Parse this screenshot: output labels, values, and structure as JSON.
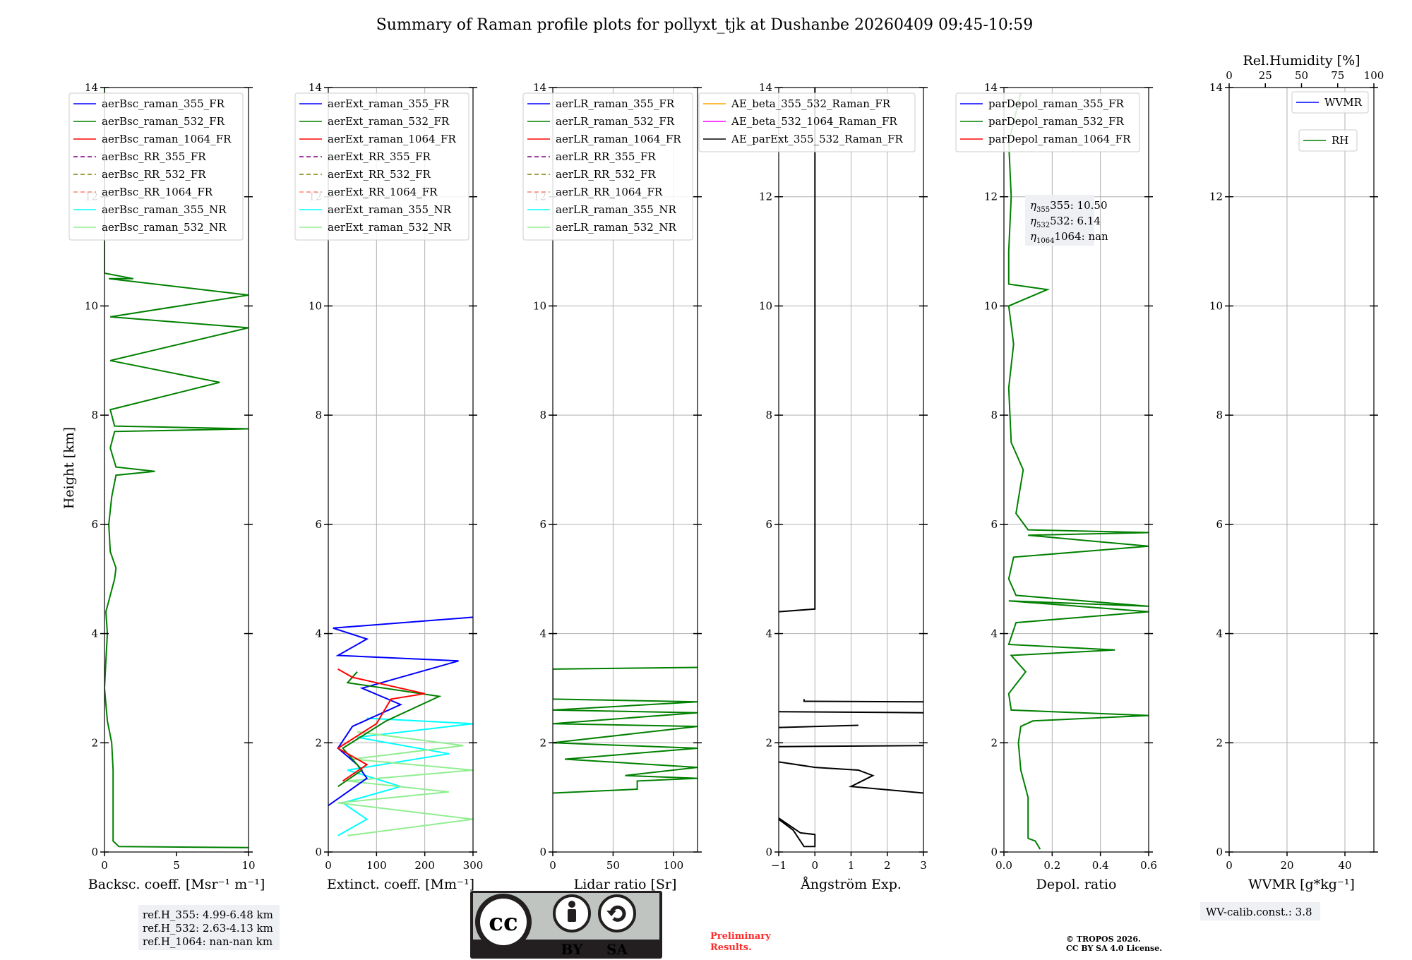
{
  "title": "Summary of Raman profile plots for pollyxt_tjk at Dushanbe 20260409 09:45-10:59",
  "shared_ylabel": "Height [km]",
  "chart_data": [
    {
      "type": "line",
      "id": "backscatter",
      "xlabel": "Backsc. coeff. [Msr⁻¹ m⁻¹]",
      "xlim": [
        0,
        10
      ],
      "ylim": [
        0,
        14
      ],
      "xticks": [
        "0",
        "5",
        "10"
      ],
      "yticks": [
        "0",
        "2",
        "4",
        "6",
        "8",
        "10",
        "12",
        "14"
      ],
      "grid": false,
      "legend": [
        "aerBsc_raman_355_FR",
        "aerBsc_raman_532_FR",
        "aerBsc_raman_1064_FR",
        "aerBsc_RR_355_FR",
        "aerBsc_RR_532_FR",
        "aerBsc_RR_1064_FR",
        "aerBsc_raman_355_NR",
        "aerBsc_raman_532_NR"
      ],
      "series": [
        {
          "name": "aerBsc_raman_532_FR",
          "color": "#008000",
          "points": [
            [
              10,
              0.08
            ],
            [
              1,
              0.1
            ],
            [
              0.6,
              0.2
            ],
            [
              0.6,
              1
            ],
            [
              0.6,
              1.5
            ],
            [
              0.5,
              2
            ],
            [
              0.2,
              2.4
            ],
            [
              0,
              3
            ],
            [
              0.1,
              3.5
            ],
            [
              0.2,
              4
            ],
            [
              0.1,
              4.4
            ],
            [
              0.4,
              4.7
            ],
            [
              0.7,
              5
            ],
            [
              0.8,
              5.2
            ],
            [
              0.4,
              5.5
            ],
            [
              0.3,
              6
            ],
            [
              0.5,
              6.5
            ],
            [
              0.8,
              6.9
            ],
            [
              3.5,
              6.97
            ],
            [
              0.8,
              7.05
            ],
            [
              0.4,
              7.4
            ],
            [
              0.7,
              7.7
            ],
            [
              10,
              7.75
            ],
            [
              0.7,
              7.8
            ],
            [
              0.4,
              8.1
            ],
            [
              8,
              8.6
            ],
            [
              0.4,
              9
            ],
            [
              10,
              9.6
            ],
            [
              0.4,
              9.8
            ],
            [
              10,
              10.2
            ],
            [
              0.3,
              10.5
            ],
            [
              2,
              10.5
            ],
            [
              0,
              10.6
            ],
            [
              0,
              14
            ]
          ]
        }
      ],
      "info": [
        "ref.H_355: 4.99-6.48 km",
        "ref.H_532: 2.63-4.13 km",
        "ref.H_1064: nan-nan km"
      ]
    },
    {
      "type": "line",
      "id": "extinction",
      "xlabel": "Extinct. coeff. [Mm⁻¹]",
      "xlim": [
        0,
        300
      ],
      "ylim": [
        0,
        14
      ],
      "xticks": [
        "0",
        "100",
        "200",
        "300"
      ],
      "yticks": [
        "0",
        "2",
        "4",
        "6",
        "8",
        "10",
        "12",
        "14"
      ],
      "grid": true,
      "legend": [
        "aerExt_raman_355_FR",
        "aerExt_raman_532_FR",
        "aerExt_raman_1064_FR",
        "aerExt_RR_355_FR",
        "aerExt_RR_532_FR",
        "aerExt_RR_1064_FR",
        "aerExt_raman_355_NR",
        "aerExt_raman_532_NR"
      ],
      "series": [
        {
          "name": "aerExt_raman_355_NR",
          "color": "#00ffff",
          "points": [
            [
              20,
              0.3
            ],
            [
              80,
              0.6
            ],
            [
              30,
              0.9
            ],
            [
              150,
              1.2
            ],
            [
              40,
              1.5
            ],
            [
              250,
              1.8
            ],
            [
              60,
              2.1
            ],
            [
              300,
              2.35
            ],
            [
              80,
              2.45
            ]
          ]
        },
        {
          "name": "aerExt_raman_532_NR",
          "color": "#90ee90",
          "points": [
            [
              40,
              0.3
            ],
            [
              300,
              0.6
            ],
            [
              20,
              0.9
            ],
            [
              250,
              1.1
            ],
            [
              40,
              1.3
            ],
            [
              300,
              1.5
            ],
            [
              50,
              1.7
            ],
            [
              280,
              1.95
            ],
            [
              60,
              2.2
            ]
          ]
        },
        {
          "name": "aerExt_raman_355_FR",
          "color": "#0000ff",
          "points": [
            [
              0,
              0.85
            ],
            [
              40,
              1.1
            ],
            [
              80,
              1.35
            ],
            [
              60,
              1.6
            ],
            [
              20,
              1.9
            ],
            [
              50,
              2.3
            ],
            [
              150,
              2.7
            ],
            [
              70,
              3
            ],
            [
              270,
              3.5
            ],
            [
              20,
              3.6
            ],
            [
              80,
              3.9
            ],
            [
              10,
              4.1
            ],
            [
              300,
              4.3
            ]
          ]
        },
        {
          "name": "aerExt_raman_532_FR",
          "color": "#008000",
          "points": [
            [
              20,
              1.2
            ],
            [
              70,
              1.5
            ],
            [
              30,
              1.9
            ],
            [
              120,
              2.4
            ],
            [
              230,
              2.85
            ],
            [
              40,
              3.1
            ],
            [
              60,
              3.3
            ]
          ]
        },
        {
          "name": "aerExt_raman_1064_FR",
          "color": "#ff0000",
          "points": [
            [
              30,
              1.3
            ],
            [
              80,
              1.6
            ],
            [
              20,
              1.9
            ],
            [
              100,
              2.35
            ],
            [
              130,
              2.8
            ],
            [
              200,
              2.9
            ],
            [
              50,
              3.2
            ],
            [
              20,
              3.35
            ]
          ]
        }
      ]
    },
    {
      "type": "line",
      "id": "lidar-ratio",
      "xlabel": "Lidar ratio [Sr]",
      "xlim": [
        0,
        120
      ],
      "ylim": [
        0,
        14
      ],
      "xticks": [
        "0",
        "50",
        "100"
      ],
      "yticks": [
        "0",
        "2",
        "4",
        "6",
        "8",
        "10",
        "12",
        "14"
      ],
      "grid": true,
      "legend": [
        "aerLR_raman_355_FR",
        "aerLR_raman_532_FR",
        "aerLR_raman_1064_FR",
        "aerLR_RR_355_FR",
        "aerLR_RR_532_FR",
        "aerLR_RR_1064_FR",
        "aerLR_raman_355_NR",
        "aerLR_raman_532_NR"
      ],
      "series": [
        {
          "name": "aerLR_raman_532_FR",
          "color": "#008000",
          "points": [
            [
              0,
              1.08
            ],
            [
              70,
              1.15
            ],
            [
              70,
              1.3
            ],
            [
              120,
              1.35
            ],
            [
              60,
              1.4
            ],
            [
              120,
              1.55
            ],
            [
              10,
              1.7
            ],
            [
              120,
              1.9
            ],
            [
              0,
              2
            ],
            [
              120,
              2.3
            ],
            [
              0,
              2.35
            ],
            [
              120,
              2.55
            ],
            [
              0,
              2.6
            ],
            [
              120,
              2.75
            ],
            [
              0,
              2.8
            ],
            [
              0,
              3.35
            ],
            [
              120,
              3.38
            ]
          ]
        }
      ]
    },
    {
      "type": "line",
      "id": "angstrom",
      "xlabel": "Ångström Exp.",
      "xlim": [
        -1,
        3
      ],
      "ylim": [
        0,
        14
      ],
      "xticks": [
        "−1",
        "0",
        "1",
        "2",
        "3"
      ],
      "yticks": [
        "0",
        "2",
        "4",
        "6",
        "8",
        "10",
        "12",
        "14"
      ],
      "grid": true,
      "legend": [
        "AE_beta_355_532_Raman_FR",
        "AE_beta_532_1064_Raman_FR",
        "AE_parExt_355_532_Raman_FR"
      ],
      "series": [
        {
          "name": "AE_parExt_355_532_Raman_FR",
          "color": "#000000",
          "points": [
            [
              -1,
              0.6
            ],
            [
              -0.6,
              0.4
            ],
            [
              -0.3,
              0.1
            ],
            [
              0,
              0.1
            ],
            [
              0,
              0.32
            ],
            [
              -0.4,
              0.35
            ],
            [
              -1,
              0.62
            ]
          ]
        },
        {
          "name": "AE_parExt_355_532_Raman_FR",
          "color": "#000000",
          "points": [
            [
              3,
              1.08
            ],
            [
              1,
              1.2
            ],
            [
              1.6,
              1.4
            ],
            [
              1.2,
              1.5
            ],
            [
              0,
              1.55
            ],
            [
              -1,
              1.65
            ]
          ]
        },
        {
          "name": "AE_parExt_355_532_Raman_FR",
          "color": "#000000",
          "points": [
            [
              -1,
              1.93
            ],
            [
              3,
              1.95
            ]
          ]
        },
        {
          "name": "AE_parExt_355_532_Raman_FR",
          "color": "#000000",
          "points": [
            [
              -1,
              2.28
            ],
            [
              1.2,
              2.32
            ]
          ]
        },
        {
          "name": "AE_parExt_355_532_Raman_FR",
          "color": "#000000",
          "points": [
            [
              3,
              2.55
            ],
            [
              -1,
              2.57
            ]
          ]
        },
        {
          "name": "AE_parExt_355_532_Raman_FR",
          "color": "#000000",
          "points": [
            [
              3,
              2.75
            ],
            [
              -0.3,
              2.76
            ],
            [
              -0.3,
              2.8
            ]
          ]
        },
        {
          "name": "AE_parExt_355_532_Raman_FR",
          "color": "#000000",
          "points": [
            [
              -1,
              4.4
            ],
            [
              0,
              4.45
            ],
            [
              0,
              14
            ]
          ]
        }
      ]
    },
    {
      "type": "line",
      "id": "depol",
      "xlabel": "Depol. ratio",
      "xlim": [
        0,
        0.6
      ],
      "ylim": [
        0,
        14
      ],
      "xticks": [
        "0.0",
        "0.2",
        "0.4",
        "0.6"
      ],
      "yticks": [
        "0",
        "2",
        "4",
        "6",
        "8",
        "10",
        "12",
        "14"
      ],
      "grid": true,
      "legend": [
        "parDepol_raman_355_FR",
        "parDepol_raman_532_FR",
        "parDepol_raman_1064_FR"
      ],
      "series": [
        {
          "name": "parDepol_raman_532_FR",
          "color": "#008000",
          "points": [
            [
              0.15,
              0.05
            ],
            [
              0.13,
              0.2
            ],
            [
              0.1,
              0.25
            ],
            [
              0.1,
              1
            ],
            [
              0.07,
              1.5
            ],
            [
              0.06,
              2
            ],
            [
              0.07,
              2.3
            ],
            [
              0.12,
              2.4
            ],
            [
              0.6,
              2.5
            ],
            [
              0.03,
              2.6
            ],
            [
              0.02,
              2.9
            ],
            [
              0.09,
              3.3
            ],
            [
              0.03,
              3.6
            ],
            [
              0.46,
              3.7
            ],
            [
              0.02,
              3.8
            ],
            [
              0.05,
              4.2
            ],
            [
              0.6,
              4.4
            ],
            [
              0.02,
              4.6
            ],
            [
              0.6,
              4.5
            ],
            [
              0.05,
              4.7
            ],
            [
              0.02,
              5
            ],
            [
              0.04,
              5.4
            ],
            [
              0.6,
              5.6
            ],
            [
              0.1,
              5.8
            ],
            [
              0.6,
              5.85
            ],
            [
              0.1,
              5.9
            ],
            [
              0.05,
              6.2
            ],
            [
              0.08,
              7
            ],
            [
              0.03,
              7.5
            ],
            [
              0.02,
              8.5
            ],
            [
              0.04,
              9.3
            ],
            [
              0.02,
              10
            ],
            [
              0.18,
              10.3
            ],
            [
              0.02,
              10.4
            ],
            [
              0.02,
              11
            ],
            [
              0.03,
              12
            ],
            [
              0.02,
              13
            ],
            [
              0.07,
              13.9
            ]
          ]
        }
      ],
      "info": [
        "355: 10.50",
        "532: 6.14",
        "1064: nan"
      ]
    },
    {
      "type": "line",
      "id": "wvmr",
      "xlabel": "WVMR [g*kg⁻¹]",
      "xlim": [
        0,
        50
      ],
      "ylim": [
        0,
        14
      ],
      "xticks": [
        "0",
        "20",
        "40"
      ],
      "yticks": [
        "0",
        "2",
        "4",
        "6",
        "8",
        "10",
        "12",
        "14"
      ],
      "grid": true,
      "top_xlabel": "Rel.Humidity [%]",
      "top_xticks": [
        "0",
        "25",
        "50",
        "75",
        "100"
      ],
      "legend": [
        "WVMR",
        "RH"
      ],
      "series": [],
      "info": [
        "WV-calib.const.: 3.8"
      ]
    }
  ],
  "footer": {
    "license_badge": [
      "BY",
      "SA"
    ],
    "preliminary": [
      "Preliminary",
      "Results."
    ],
    "copyright": [
      "© TROPOS 2026.",
      "CC BY SA 4.0 License."
    ]
  },
  "colors": {
    "blue": "#0000ff",
    "green": "#008000",
    "red": "#ff0000",
    "purple": "#800080",
    "olive": "#808000",
    "salmon": "#fa8072",
    "cyan": "#00ffff",
    "lightgreen": "#90ee90",
    "orange": "#ffa500",
    "magenta": "#ff00ff",
    "black": "#000000"
  }
}
